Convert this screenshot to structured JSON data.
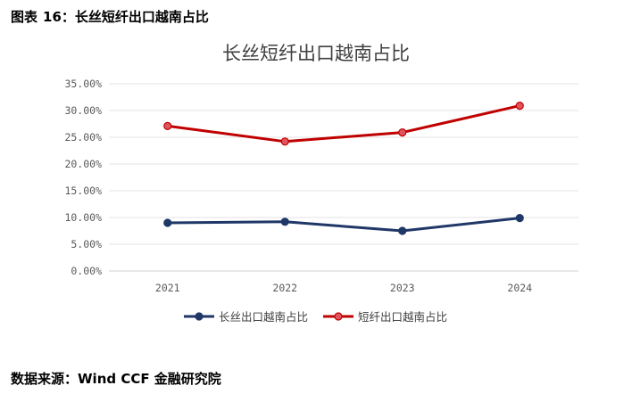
{
  "caption": {
    "label": "图表",
    "number": "16：",
    "text": "长丝短纤出口越南占比"
  },
  "source": "数据来源：Wind CCF 金融研究院",
  "chart_data": {
    "type": "line",
    "title": "长丝短纤出口越南占比",
    "xlabel": "",
    "ylabel": "",
    "categories": [
      "2021",
      "2022",
      "2023",
      "2024"
    ],
    "yticks": [
      "0.00%",
      "5.00%",
      "10.00%",
      "15.00%",
      "20.00%",
      "25.00%",
      "30.00%",
      "35.00%"
    ],
    "ylim": [
      0,
      35
    ],
    "grid": true,
    "legend_position": "bottom",
    "series": [
      {
        "name": "长丝出口越南占比",
        "values": [
          9.0,
          9.2,
          7.5,
          9.9
        ],
        "color": "#1f3868"
      },
      {
        "name": "短纤出口越南占比",
        "values": [
          27.1,
          24.2,
          25.9,
          30.9
        ],
        "color": "#c00000"
      }
    ]
  }
}
